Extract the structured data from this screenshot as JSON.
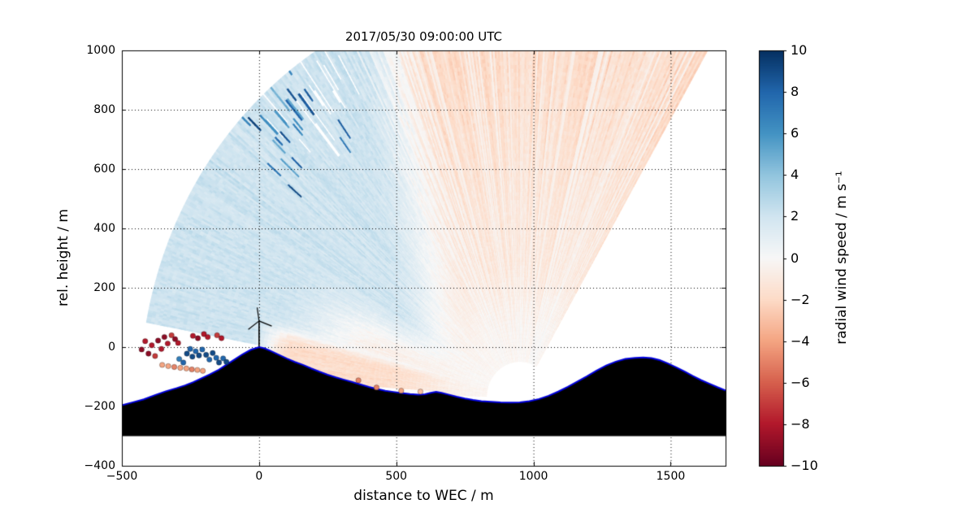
{
  "chart_data": {
    "type": "heatmap",
    "title": "2017/05/30 09:00:00 UTC",
    "xlabel": "distance to WEC / m",
    "ylabel": "rel. height / m",
    "xlim": [
      -500,
      1700
    ],
    "ylim": [
      -400,
      1000
    ],
    "xticks": [
      -500,
      0,
      500,
      1000,
      1500
    ],
    "yticks": [
      -400,
      -200,
      0,
      200,
      400,
      600,
      800,
      1000
    ],
    "grid": true,
    "grid_style": "dotted",
    "colorbar": {
      "label": "radial wind speed / m s⁻¹",
      "min": -10,
      "max": 10,
      "ticks": [
        -10,
        -8,
        -6,
        -4,
        -2,
        0,
        2,
        4,
        6,
        8,
        10
      ]
    },
    "colormap": {
      "name": "RdBu",
      "stops": [
        "#67001f",
        "#b2182b",
        "#d6604d",
        "#f4a582",
        "#fddbc7",
        "#f7f7f7",
        "#d1e5f0",
        "#92c5de",
        "#4393c3",
        "#2166ac",
        "#053061"
      ]
    },
    "lidar_scan": {
      "origin": [
        950,
        -170
      ],
      "range_m": [
        120,
        1380
      ],
      "elevation_deg": [
        1.5,
        120
      ],
      "beam_step_deg": 0.3,
      "bin_m": 13,
      "seed": 7,
      "field_model": {
        "blue_value": 2.1,
        "pink_value": -1.1,
        "pink_far_extra": -0.7,
        "terrain_wedge_value": -1.8,
        "boundary_x_at_y0": 660,
        "boundary_slope": -0.18,
        "noise_beam": 1.1,
        "noise_bin": 0.7,
        "speckle_value_range": [
          3,
          7.5
        ]
      }
    },
    "terrain": {
      "fill": "#000000",
      "edge_color": "#0000dd",
      "base_height": -300,
      "points": [
        [
          -500,
          -196
        ],
        [
          -460,
          -186
        ],
        [
          -420,
          -176
        ],
        [
          -380,
          -162
        ],
        [
          -340,
          -149
        ],
        [
          -300,
          -138
        ],
        [
          -270,
          -129
        ],
        [
          -240,
          -118
        ],
        [
          -210,
          -105
        ],
        [
          -180,
          -92
        ],
        [
          -150,
          -78
        ],
        [
          -120,
          -60
        ],
        [
          -90,
          -42
        ],
        [
          -60,
          -24
        ],
        [
          -30,
          -9
        ],
        [
          0,
          0
        ],
        [
          20,
          -4
        ],
        [
          40,
          -12
        ],
        [
          70,
          -25
        ],
        [
          100,
          -38
        ],
        [
          130,
          -50
        ],
        [
          160,
          -60
        ],
        [
          190,
          -72
        ],
        [
          220,
          -83
        ],
        [
          250,
          -93
        ],
        [
          280,
          -102
        ],
        [
          310,
          -110
        ],
        [
          340,
          -118
        ],
        [
          370,
          -126
        ],
        [
          400,
          -134
        ],
        [
          430,
          -141
        ],
        [
          460,
          -147
        ],
        [
          490,
          -151
        ],
        [
          520,
          -155
        ],
        [
          550,
          -158
        ],
        [
          580,
          -160
        ],
        [
          605,
          -159
        ],
        [
          625,
          -154
        ],
        [
          645,
          -151
        ],
        [
          665,
          -154
        ],
        [
          690,
          -160
        ],
        [
          720,
          -167
        ],
        [
          750,
          -173
        ],
        [
          780,
          -178
        ],
        [
          810,
          -182
        ],
        [
          845,
          -184
        ],
        [
          880,
          -186
        ],
        [
          915,
          -187
        ],
        [
          950,
          -186
        ],
        [
          985,
          -182
        ],
        [
          1020,
          -175
        ],
        [
          1055,
          -164
        ],
        [
          1090,
          -150
        ],
        [
          1125,
          -134
        ],
        [
          1160,
          -116
        ],
        [
          1195,
          -98
        ],
        [
          1230,
          -79
        ],
        [
          1265,
          -62
        ],
        [
          1300,
          -49
        ],
        [
          1335,
          -40
        ],
        [
          1370,
          -36
        ],
        [
          1400,
          -35
        ],
        [
          1430,
          -37
        ],
        [
          1460,
          -44
        ],
        [
          1490,
          -55
        ],
        [
          1520,
          -68
        ],
        [
          1550,
          -82
        ],
        [
          1580,
          -97
        ],
        [
          1610,
          -111
        ],
        [
          1640,
          -123
        ],
        [
          1670,
          -135
        ],
        [
          1700,
          -146
        ]
      ]
    },
    "turbine": {
      "x": 0,
      "base_y": 2,
      "hub_y": 88,
      "blade_length_m": 48,
      "blade_angles_deg": [
        98,
        218,
        338
      ],
      "color": "#000000"
    },
    "scatter_points": [
      [
        -428,
        -8,
        -9
      ],
      [
        -415,
        20,
        -8
      ],
      [
        -403,
        -22,
        -9
      ],
      [
        -391,
        6,
        -8
      ],
      [
        -379,
        -30,
        -7
      ],
      [
        -368,
        22,
        -9
      ],
      [
        -356,
        -6,
        -8
      ],
      [
        -345,
        34,
        -9
      ],
      [
        -333,
        12,
        -8
      ],
      [
        -319,
        40,
        -7
      ],
      [
        -306,
        27,
        -9
      ],
      [
        -295,
        14,
        -8
      ],
      [
        -263,
        -22,
        9
      ],
      [
        -251,
        -6,
        8
      ],
      [
        -243,
        -32,
        9
      ],
      [
        -231,
        -14,
        8
      ],
      [
        -219,
        -28,
        9
      ],
      [
        -207,
        -8,
        8
      ],
      [
        -193,
        -26,
        9
      ],
      [
        -181,
        -42,
        8
      ],
      [
        -169,
        -20,
        9
      ],
      [
        -156,
        -36,
        8
      ],
      [
        -146,
        -52,
        9
      ],
      [
        -131,
        -38,
        8
      ],
      [
        -119,
        -50,
        9
      ],
      [
        -291,
        -40,
        7
      ],
      [
        -276,
        -52,
        8
      ],
      [
        -241,
        38,
        -8
      ],
      [
        -223,
        30,
        -9
      ],
      [
        -201,
        44,
        -8
      ],
      [
        -187,
        34,
        -8
      ],
      [
        -153,
        40,
        -7
      ],
      [
        -137,
        30,
        -8
      ],
      [
        -353,
        -60,
        -4
      ],
      [
        -331,
        -64,
        -4
      ],
      [
        -309,
        -67,
        -5
      ],
      [
        -287,
        -70,
        -4
      ],
      [
        -265,
        -72,
        -4
      ],
      [
        -245,
        -75,
        -5
      ],
      [
        -225,
        -77,
        -4
      ],
      [
        -205,
        -80,
        -4
      ],
      [
        362,
        -112,
        -5
      ],
      [
        428,
        -136,
        -5
      ],
      [
        518,
        -147,
        -4
      ],
      [
        588,
        -150,
        -3
      ]
    ]
  }
}
